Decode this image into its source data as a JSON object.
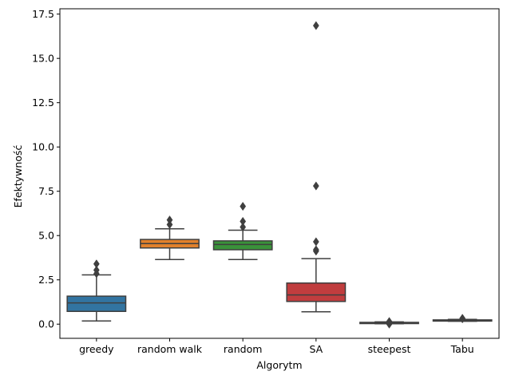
{
  "chart_data": {
    "type": "box",
    "title": "",
    "xlabel": "Algorytm",
    "ylabel": "Efektywność",
    "ylim": [
      -0.8,
      17.8
    ],
    "yticks": [
      0.0,
      2.5,
      5.0,
      7.5,
      10.0,
      12.5,
      15.0,
      17.5
    ],
    "ytick_labels": [
      "0.0",
      "2.5",
      "5.0",
      "7.5",
      "10.0",
      "12.5",
      "15.0",
      "17.5"
    ],
    "grid": false,
    "categories": [
      "greedy",
      "random walk",
      "random",
      "SA",
      "steepest",
      "Tabu"
    ],
    "series": [
      {
        "category": "greedy",
        "color": "#3274a1",
        "whisker_low": 0.18,
        "q1": 0.72,
        "median": 1.2,
        "q3": 1.58,
        "whisker_high": 2.78,
        "outliers": [
          2.85,
          3.05,
          3.4
        ]
      },
      {
        "category": "random walk",
        "color": "#e1812c",
        "whisker_low": 3.65,
        "q1": 4.3,
        "median": 4.55,
        "q3": 4.78,
        "whisker_high": 5.38,
        "outliers": [
          5.62,
          5.88
        ]
      },
      {
        "category": "random",
        "color": "#3a923a",
        "whisker_low": 3.65,
        "q1": 4.2,
        "median": 4.5,
        "q3": 4.7,
        "whisker_high": 5.3,
        "outliers": [
          5.48,
          5.8,
          6.65
        ]
      },
      {
        "category": "SA",
        "color": "#c03d3e",
        "whisker_low": 0.7,
        "q1": 1.28,
        "median": 1.65,
        "q3": 2.32,
        "whisker_high": 3.7,
        "outliers": [
          4.12,
          4.2,
          4.65,
          7.8,
          16.85
        ]
      },
      {
        "category": "steepest",
        "color": "#9372b2",
        "whisker_low": 0.02,
        "q1": 0.05,
        "median": 0.07,
        "q3": 0.1,
        "whisker_high": 0.13,
        "outliers": [
          0.0,
          0.15
        ]
      },
      {
        "category": "Tabu",
        "color": "#845b53",
        "whisker_low": 0.16,
        "q1": 0.19,
        "median": 0.21,
        "q3": 0.24,
        "whisker_high": 0.27,
        "outliers": [
          0.3,
          0.33
        ]
      }
    ]
  }
}
